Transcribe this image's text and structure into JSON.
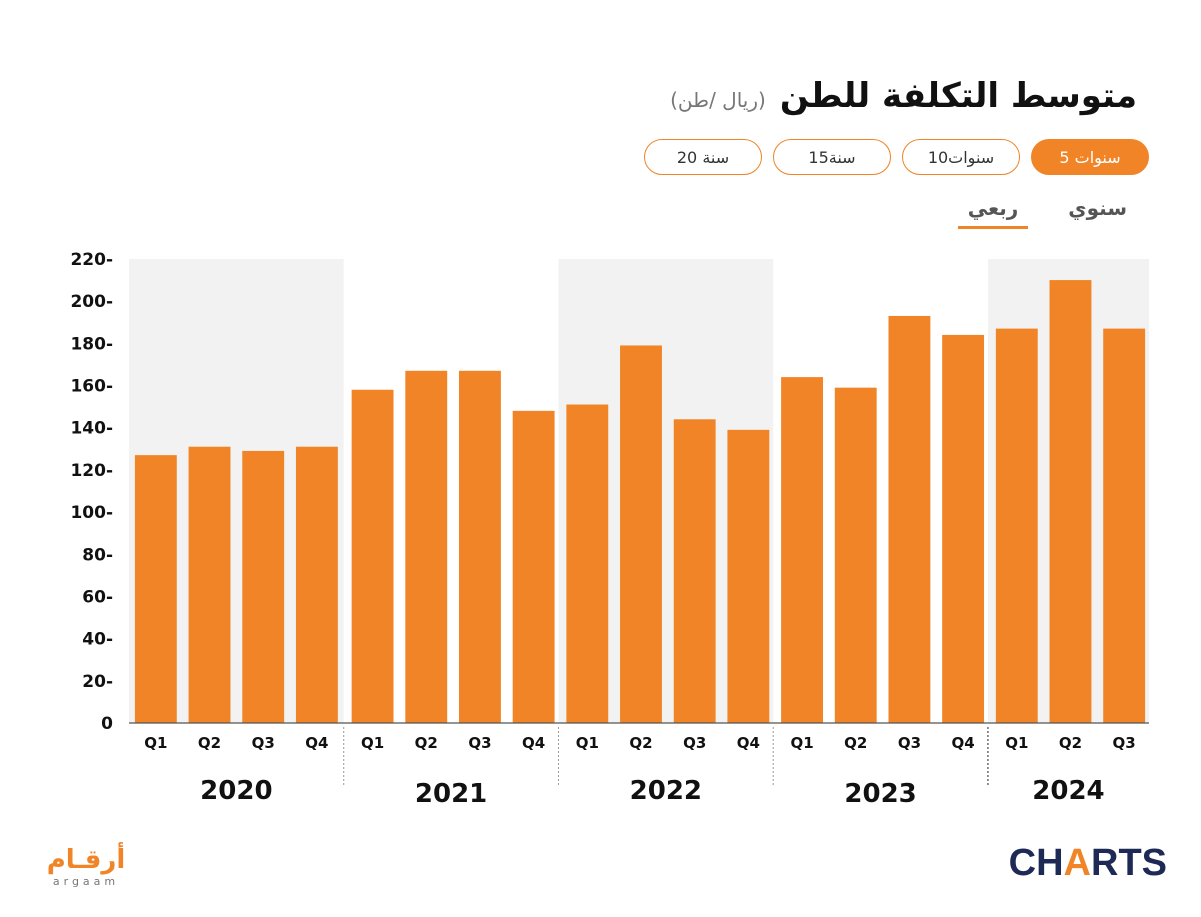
{
  "header": {
    "title": "متوسط التكلفة للطن",
    "unit": "(ريال /طن)"
  },
  "range_buttons": [
    "5 سنوات",
    "10سنوات",
    "15سنة",
    "20 سنة"
  ],
  "mode_tabs": {
    "annual": "سنوي",
    "quarterly": "ربعي"
  },
  "colors": {
    "accent": "#f08426",
    "band": "#f2f2f2",
    "text": "#111111"
  },
  "chart_data": {
    "type": "bar",
    "ylim": [
      0,
      220
    ],
    "yticks": [
      0,
      20,
      40,
      60,
      80,
      100,
      120,
      140,
      160,
      180,
      200,
      220
    ],
    "ytick_labels": [
      "0",
      "20-",
      "40-",
      "60-",
      "80-",
      "100-",
      "120-",
      "140-",
      "160-",
      "180-",
      "200-",
      "220-"
    ],
    "groups": [
      {
        "year": "2020",
        "quarters": [
          "Q1",
          "Q2",
          "Q3",
          "Q4"
        ],
        "values": [
          127,
          131,
          129,
          131
        ]
      },
      {
        "year": "2021",
        "quarters": [
          "Q1",
          "Q2",
          "Q3",
          "Q4"
        ],
        "values": [
          158,
          167,
          167,
          148
        ]
      },
      {
        "year": "2022",
        "quarters": [
          "Q1",
          "Q2",
          "Q3",
          "Q4"
        ],
        "values": [
          151,
          179,
          144,
          139
        ]
      },
      {
        "year": "2023",
        "quarters": [
          "Q1",
          "Q2",
          "Q3",
          "Q4"
        ],
        "values": [
          164,
          159,
          193,
          184
        ]
      },
      {
        "year": "2024",
        "quarters": [
          "Q1",
          "Q2",
          "Q3"
        ],
        "values": [
          187,
          210,
          187
        ]
      }
    ]
  },
  "logos": {
    "left_ar": "أرقـام",
    "left_en": "argaam",
    "right_main": "CH",
    "right_accent": "A",
    "right_tail": "RTS"
  }
}
